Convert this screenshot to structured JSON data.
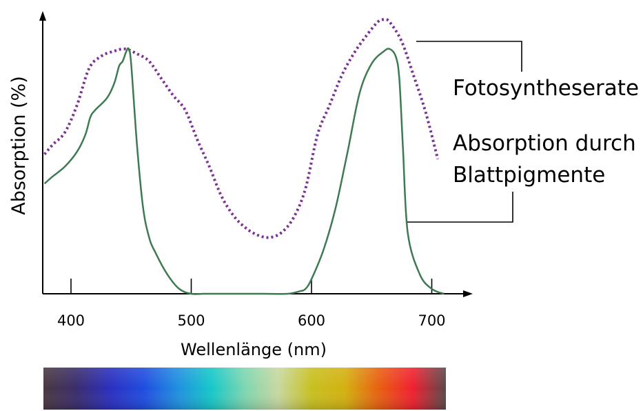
{
  "chart_data": {
    "type": "line",
    "xlabel": "Wellenlänge (nm)",
    "ylabel": "Absorption (%)",
    "xlim": [
      378,
      710
    ],
    "xticks": [
      400,
      500,
      600,
      700
    ],
    "y_unit": "relative",
    "series": [
      {
        "name": "Fotosyntheserate",
        "style": "dotted",
        "color": "#7b3294",
        "x": [
          378,
          385,
          395,
          405,
          415,
          425,
          435,
          445,
          455,
          465,
          475,
          485,
          495,
          505,
          515,
          525,
          535,
          545,
          555,
          565,
          575,
          585,
          595,
          605,
          615,
          625,
          635,
          645,
          655,
          660,
          665,
          675,
          685,
          695,
          705
        ],
        "y": [
          0.57,
          0.61,
          0.66,
          0.77,
          0.92,
          0.97,
          0.99,
          1.0,
          0.98,
          0.95,
          0.88,
          0.81,
          0.75,
          0.63,
          0.52,
          0.4,
          0.32,
          0.27,
          0.24,
          0.23,
          0.25,
          0.31,
          0.43,
          0.65,
          0.77,
          0.89,
          0.98,
          1.05,
          1.11,
          1.12,
          1.11,
          1.03,
          0.89,
          0.74,
          0.55
        ]
      },
      {
        "name": "Absorption durch Blattpigmente",
        "style": "solid",
        "color": "#3d7a52",
        "x": [
          378,
          385,
          395,
          405,
          412,
          416,
          420,
          430,
          436,
          440,
          443,
          446,
          448,
          450,
          455,
          460,
          465,
          470,
          480,
          490,
          500,
          510,
          520,
          540,
          560,
          580,
          590,
          595,
          600,
          610,
          620,
          630,
          640,
          650,
          660,
          665,
          670,
          673,
          676,
          680,
          690,
          700,
          710
        ],
        "y": [
          0.45,
          0.48,
          0.52,
          0.58,
          0.65,
          0.72,
          0.75,
          0.8,
          0.86,
          0.93,
          0.95,
          0.99,
          1.0,
          0.94,
          0.6,
          0.35,
          0.23,
          0.17,
          0.08,
          0.02,
          0.0,
          0.0,
          0.0,
          0.0,
          0.0,
          0.0,
          0.01,
          0.02,
          0.06,
          0.18,
          0.35,
          0.58,
          0.82,
          0.94,
          0.99,
          1.0,
          0.97,
          0.88,
          0.6,
          0.25,
          0.08,
          0.02,
          0.0
        ]
      }
    ],
    "legend": [
      {
        "series": "Fotosyntheserate",
        "lines": [
          "Fotosyntheserate"
        ]
      },
      {
        "series": "Absorption durch Blattpigmente",
        "lines": [
          "Absorption durch",
          "Blattpigmente"
        ]
      }
    ],
    "spectrum_bar": {
      "colors": [
        "#4a3840",
        "#3a2c6e",
        "#2a2fc0",
        "#1f4de0",
        "#1f8fe0",
        "#15c8c8",
        "#7ed6b0",
        "#c8d8a0",
        "#c8c020",
        "#d4b010",
        "#e86010",
        "#f02030",
        "#5a4848"
      ]
    }
  }
}
